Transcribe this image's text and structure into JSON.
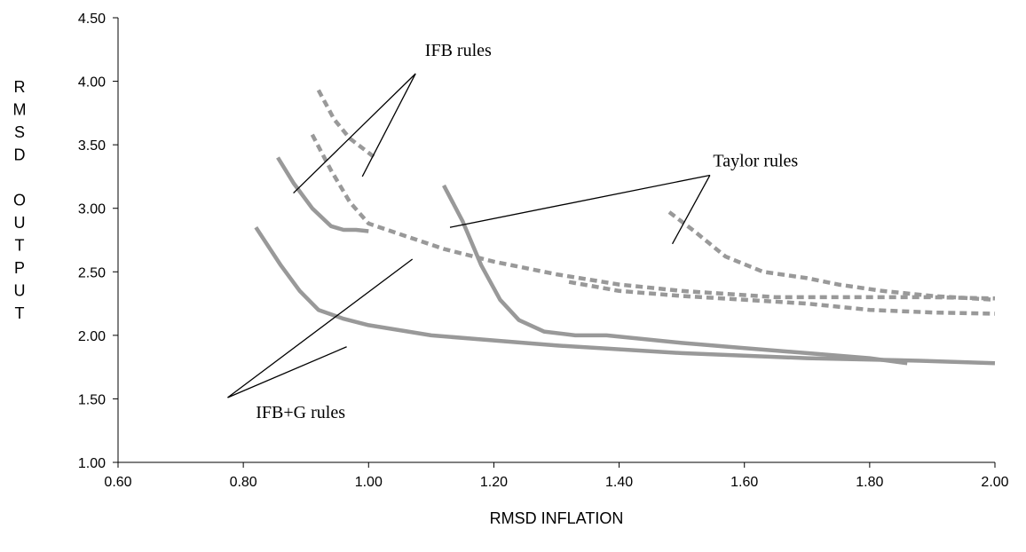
{
  "chart_data": {
    "type": "line",
    "title": "",
    "xlabel": "RMSD INFLATION",
    "ylabel": "RMSD OUTPUT",
    "xlim": [
      0.6,
      2.0
    ],
    "ylim": [
      1.0,
      4.5
    ],
    "x_ticks": [
      "0.60",
      "0.80",
      "1.00",
      "1.20",
      "1.40",
      "1.60",
      "1.80",
      "2.00"
    ],
    "y_ticks": [
      "1.00",
      "1.50",
      "2.00",
      "2.50",
      "3.00",
      "3.50",
      "4.00",
      "4.50"
    ],
    "grid": false,
    "legend": "none",
    "series": [
      {
        "style": "solid",
        "color": "#999999",
        "points": [
          [
            0.82,
            2.85
          ],
          [
            0.86,
            2.55
          ],
          [
            0.89,
            2.35
          ],
          [
            0.92,
            2.2
          ],
          [
            0.96,
            2.13
          ],
          [
            1.0,
            2.08
          ],
          [
            1.1,
            2.0
          ],
          [
            1.3,
            1.92
          ],
          [
            1.5,
            1.86
          ],
          [
            1.7,
            1.82
          ],
          [
            1.88,
            1.8
          ],
          [
            2.0,
            1.78
          ]
        ]
      },
      {
        "style": "solid",
        "color": "#999999",
        "points": [
          [
            0.855,
            3.4
          ],
          [
            0.88,
            3.2
          ],
          [
            0.91,
            3.0
          ],
          [
            0.94,
            2.86
          ],
          [
            0.96,
            2.83
          ],
          [
            0.98,
            2.83
          ],
          [
            1.0,
            2.82
          ]
        ]
      },
      {
        "style": "solid",
        "color": "#999999",
        "points": [
          [
            1.12,
            3.18
          ],
          [
            1.15,
            2.9
          ],
          [
            1.18,
            2.55
          ],
          [
            1.21,
            2.28
          ],
          [
            1.24,
            2.12
          ],
          [
            1.28,
            2.03
          ],
          [
            1.33,
            2.0
          ],
          [
            1.38,
            2.0
          ],
          [
            1.5,
            1.94
          ],
          [
            1.6,
            1.9
          ],
          [
            1.7,
            1.86
          ],
          [
            1.8,
            1.82
          ],
          [
            1.86,
            1.78
          ]
        ]
      },
      {
        "style": "dashed",
        "color": "#999999",
        "points": [
          [
            0.91,
            3.58
          ],
          [
            0.94,
            3.3
          ],
          [
            0.97,
            3.05
          ],
          [
            1.0,
            2.88
          ],
          [
            1.06,
            2.78
          ],
          [
            1.12,
            2.68
          ],
          [
            1.2,
            2.58
          ],
          [
            1.3,
            2.48
          ],
          [
            1.4,
            2.4
          ],
          [
            1.5,
            2.35
          ],
          [
            1.65,
            2.3
          ],
          [
            1.8,
            2.3
          ],
          [
            1.9,
            2.3
          ],
          [
            2.0,
            2.29
          ]
        ]
      },
      {
        "style": "dashed",
        "color": "#999999",
        "points": [
          [
            0.92,
            3.93
          ],
          [
            0.945,
            3.7
          ],
          [
            0.97,
            3.55
          ],
          [
            1.01,
            3.4
          ]
        ]
      },
      {
        "style": "dashed",
        "color": "#999999",
        "points": [
          [
            1.48,
            2.97
          ],
          [
            1.52,
            2.82
          ],
          [
            1.57,
            2.62
          ],
          [
            1.63,
            2.5
          ],
          [
            1.7,
            2.45
          ],
          [
            1.75,
            2.4
          ],
          [
            1.82,
            2.35
          ],
          [
            1.9,
            2.31
          ],
          [
            2.0,
            2.28
          ]
        ]
      },
      {
        "style": "dashed",
        "color": "#999999",
        "points": [
          [
            1.32,
            2.42
          ],
          [
            1.4,
            2.35
          ],
          [
            1.5,
            2.31
          ],
          [
            1.6,
            2.28
          ],
          [
            1.7,
            2.25
          ],
          [
            1.8,
            2.2
          ],
          [
            1.9,
            2.18
          ],
          [
            2.0,
            2.17
          ]
        ]
      }
    ],
    "annotations": [
      {
        "text": "IFB rules",
        "x": 1.09,
        "y": 4.2,
        "leaders": [
          {
            "from": [
              1.075,
              4.06
            ],
            "to": [
              0.88,
              3.12
            ]
          },
          {
            "from": [
              1.075,
              4.06
            ],
            "to": [
              0.99,
              3.25
            ]
          }
        ]
      },
      {
        "text": "Taylor rules",
        "x": 1.55,
        "y": 3.33,
        "leaders": [
          {
            "from": [
              1.545,
              3.26
            ],
            "to": [
              1.13,
              2.85
            ]
          },
          {
            "from": [
              1.545,
              3.26
            ],
            "to": [
              1.485,
              2.72
            ]
          }
        ]
      },
      {
        "text": "IFB+G rules",
        "x": 0.82,
        "y": 1.35,
        "leaders": [
          {
            "from": [
              0.775,
              1.51
            ],
            "to": [
              1.07,
              2.6
            ]
          },
          {
            "from": [
              0.775,
              1.51
            ],
            "to": [
              0.965,
              1.91
            ]
          }
        ]
      }
    ]
  }
}
